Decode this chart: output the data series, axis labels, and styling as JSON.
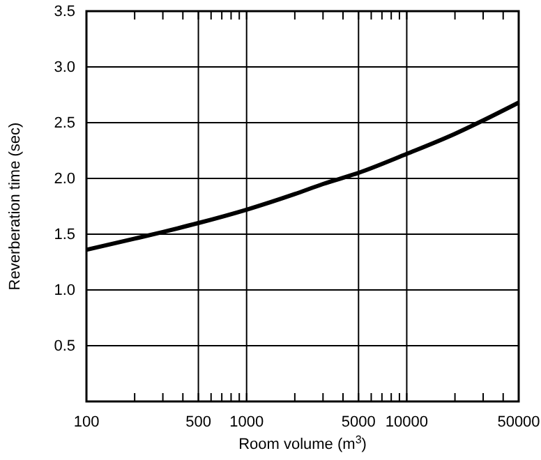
{
  "chart_data": {
    "type": "line",
    "xlabel": "Room volume (m$^{3}$)",
    "ylabel": "Reverberation time (sec)",
    "log": "x",
    "x": [
      100,
      200,
      300,
      500,
      1000,
      2000,
      3000,
      5000,
      10000,
      20000,
      30000,
      50000
    ],
    "series": [
      {
        "color": "#000000",
        "values": [
          1.36,
          1.46,
          1.52,
          1.6,
          1.72,
          1.86,
          1.95,
          2.05,
          2.22,
          2.4,
          2.52,
          2.68
        ]
      }
    ],
    "xlim": [
      100,
      50000
    ],
    "xticks": [
      100,
      {
        "value": 200,
        "label": null
      },
      {
        "value": 300,
        "label": null
      },
      {
        "value": 400,
        "label": null
      },
      500,
      {
        "value": 600,
        "label": null
      },
      {
        "value": 700,
        "label": null
      },
      {
        "value": 800,
        "label": null
      },
      {
        "value": 900,
        "label": null
      },
      1000,
      {
        "value": 2000,
        "label": null
      },
      {
        "value": 3000,
        "label": null
      },
      {
        "value": 4000,
        "label": null
      },
      5000,
      {
        "value": 6000,
        "label": null
      },
      {
        "value": 7000,
        "label": null
      },
      {
        "value": 8000,
        "label": null
      },
      {
        "value": 9000,
        "label": null
      },
      10000,
      {
        "value": 20000,
        "label": null
      },
      {
        "value": 30000,
        "label": null
      },
      {
        "value": 40000,
        "label": null
      },
      50000
    ],
    "ylim": [
      0,
      3.5
    ],
    "yticks": [
      0.5,
      {
        "value": 1,
        "label": "1.0"
      },
      1.5,
      {
        "value": 2,
        "label": "2.0"
      },
      2.5,
      {
        "value": 3,
        "label": "3.0"
      },
      3.5
    ],
    "grid": true,
    "line_style": "solid",
    "marker": "none"
  }
}
